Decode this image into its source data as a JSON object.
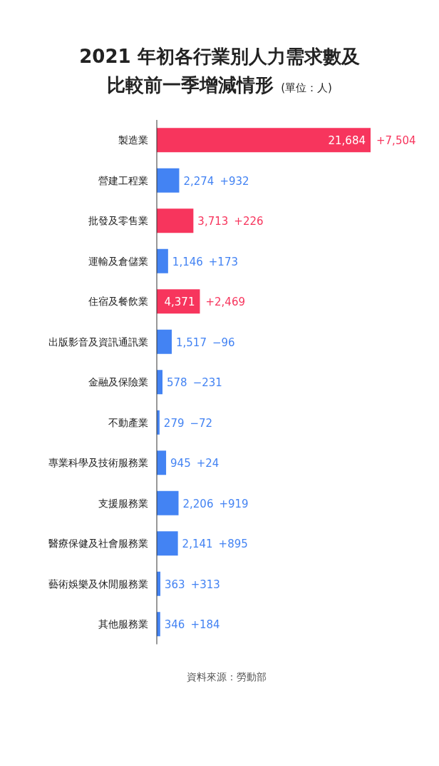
{
  "chart_data": {
    "type": "bar",
    "orientation": "horizontal",
    "title": "2021 年初各行業別人力需求數及比較前一季增減情形",
    "subtitle": "(單位：人)",
    "categories": [
      "製造業",
      "營建工程業",
      "批發及零售業",
      "運輸及倉儲業",
      "住宿及餐飲業",
      "出版影音及資訊通訊業",
      "金融及保險業",
      "不動產業",
      "專業科學及技術服務業",
      "支援服務業",
      "醫療保健及社會服務業",
      "藝術娛樂及休閒服務業",
      "其他服務業"
    ],
    "values": [
      21684,
      2274,
      3713,
      1146,
      4371,
      1517,
      578,
      279,
      945,
      2206,
      2141,
      363,
      346
    ],
    "colors": [
      "#f7355d",
      "#4383f3",
      "#f7355d",
      "#4383f3",
      "#f7355d",
      "#4383f3",
      "#4383f3",
      "#4383f3",
      "#4383f3",
      "#4383f3",
      "#4383f3",
      "#4383f3",
      "#4383f3"
    ],
    "value_labels": [
      "21,684",
      "2,274",
      "3,713",
      "1,146",
      "4,371",
      "1,517",
      "578",
      "279",
      "945",
      "2,206",
      "2,141",
      "363",
      "346"
    ],
    "annotations": [
      "+7,504",
      "+932",
      "+226",
      "+173",
      "+2,469",
      "−96",
      "−231",
      "−72",
      "+24",
      "+919",
      "+895",
      "+313",
      "+184",
      "資料來源：勞動部"
    ]
  }
}
